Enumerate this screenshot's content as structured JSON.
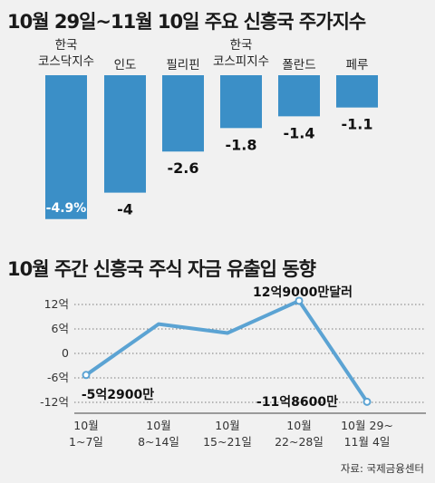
{
  "title1": "10월 29일~11월 10일 주요 신흥국 주가지수",
  "title2": "10월 주간 신흥국 주식 자금 유출입 동향",
  "source": "자료: 국제금융센터",
  "colors": {
    "bar": "#3b8fc7",
    "line": "#5ba3d3",
    "background": "#f1f1f1"
  },
  "chart_data": [
    {
      "type": "bar",
      "title": "10월 29일~11월 10일 주요 신흥국 주가지수",
      "categories": [
        [
          "한국",
          "코스닥지수"
        ],
        [
          "인도"
        ],
        [
          "필리핀"
        ],
        [
          "한국",
          "코스피지수"
        ],
        [
          "폴란드"
        ],
        [
          "페루"
        ]
      ],
      "values": [
        -4.9,
        -4,
        -2.6,
        -1.8,
        -1.4,
        -1.1
      ],
      "value_labels": [
        "-4.9%",
        "-4",
        "-2.6",
        "-1.8",
        "-1.4",
        "-1.1"
      ],
      "ylim": [
        -5.4,
        0
      ]
    },
    {
      "type": "line",
      "title": "10월 주간 신흥국 주식 자금 유출입 동향",
      "x": [
        [
          "10월",
          "1~7일"
        ],
        [
          "10월",
          "8~14일"
        ],
        [
          "10월",
          "15~21일"
        ],
        [
          "10월",
          "22~28일"
        ],
        [
          "10월 29~",
          "11월 4일"
        ]
      ],
      "y": [
        -5.29,
        7.2,
        5.0,
        12.9,
        -11.86
      ],
      "yticks": [
        12,
        6,
        0,
        -6,
        -12
      ],
      "ytick_labels": [
        "12억",
        "6억",
        "0",
        "-6억",
        "-12억"
      ],
      "ylim": [
        -12,
        12
      ],
      "annotations": [
        "-5억2900만",
        "12억9000만달러",
        "-11억8600만"
      ]
    }
  ]
}
